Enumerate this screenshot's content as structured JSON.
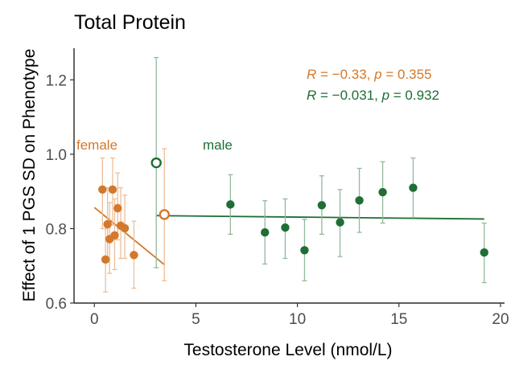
{
  "chart_data": {
    "type": "scatter",
    "title": "Total Protein",
    "xlabel": "Testosterone Level (nmol/L)",
    "ylabel": "Effect of 1 PGS SD on Phenotype",
    "xlim": [
      -1,
      20.2
    ],
    "ylim": [
      0.6,
      1.285
    ],
    "x_ticks": [
      0,
      5,
      10,
      15,
      20
    ],
    "y_ticks": [
      0.6,
      0.8,
      1.0,
      1.2
    ],
    "x_tick_labels": [
      "0",
      "5",
      "10",
      "15",
      "20"
    ],
    "y_tick_labels": [
      "0.6",
      "0.8",
      "1.0",
      "1.2"
    ],
    "grid": false,
    "series": [
      {
        "name": "female",
        "color": "#D4782B",
        "error_color": "#EDBE99",
        "points": [
          {
            "x": 0.4,
            "y": 0.905,
            "lo": 0.8,
            "hi": 0.99
          },
          {
            "x": 0.55,
            "y": 0.717,
            "lo": 0.63,
            "hi": 0.8
          },
          {
            "x": 0.65,
            "y": 0.812,
            "lo": 0.71,
            "hi": 0.91
          },
          {
            "x": 0.75,
            "y": 0.772,
            "lo": 0.68,
            "hi": 0.87
          },
          {
            "x": 0.9,
            "y": 0.905,
            "lo": 0.81,
            "hi": 0.99
          },
          {
            "x": 1.0,
            "y": 0.782,
            "lo": 0.69,
            "hi": 0.88
          },
          {
            "x": 1.15,
            "y": 0.855,
            "lo": 0.77,
            "hi": 0.95
          },
          {
            "x": 1.3,
            "y": 0.808,
            "lo": 0.72,
            "hi": 0.91
          },
          {
            "x": 1.5,
            "y": 0.801,
            "lo": 0.72,
            "hi": 0.89
          },
          {
            "x": 1.95,
            "y": 0.729,
            "lo": 0.64,
            "hi": 0.82
          }
        ],
        "summary": {
          "x": 3.45,
          "y": 0.838,
          "lo": 0.66,
          "hi": 1.015
        },
        "fit": {
          "x": [
            0.0,
            3.45
          ],
          "y": [
            0.857,
            0.703
          ]
        },
        "label": "female",
        "stat": {
          "r": "−0.33",
          "p": "0.355"
        }
      },
      {
        "name": "male",
        "color": "#1E6E35",
        "error_color": "#93B99B",
        "points": [
          {
            "x": 6.7,
            "y": 0.865,
            "lo": 0.785,
            "hi": 0.945
          },
          {
            "x": 8.4,
            "y": 0.79,
            "lo": 0.705,
            "hi": 0.875
          },
          {
            "x": 9.4,
            "y": 0.803,
            "lo": 0.72,
            "hi": 0.88
          },
          {
            "x": 10.35,
            "y": 0.742,
            "lo": 0.66,
            "hi": 0.825
          },
          {
            "x": 11.2,
            "y": 0.863,
            "lo": 0.785,
            "hi": 0.942
          },
          {
            "x": 12.1,
            "y": 0.817,
            "lo": 0.725,
            "hi": 0.905
          },
          {
            "x": 13.05,
            "y": 0.876,
            "lo": 0.79,
            "hi": 0.962
          },
          {
            "x": 14.2,
            "y": 0.898,
            "lo": 0.815,
            "hi": 0.98
          },
          {
            "x": 15.7,
            "y": 0.91,
            "lo": 0.83,
            "hi": 0.99
          },
          {
            "x": 19.2,
            "y": 0.736,
            "lo": 0.655,
            "hi": 0.815
          }
        ],
        "summary": {
          "x": 3.05,
          "y": 0.977,
          "lo": 0.695,
          "hi": 1.26
        },
        "fit": {
          "x": [
            3.05,
            19.2
          ],
          "y": [
            0.835,
            0.826
          ]
        },
        "label": "male",
        "stat": {
          "r": "−0.031",
          "p": "0.932"
        }
      }
    ],
    "annotations": {
      "female_label": "female",
      "male_label": "male",
      "stat_r_symbol": "R",
      "stat_p_symbol": "p",
      "female_stat_text": "R = −0.33, p = 0.355",
      "male_stat_text": "R = −0.031, p = 0.932"
    }
  }
}
